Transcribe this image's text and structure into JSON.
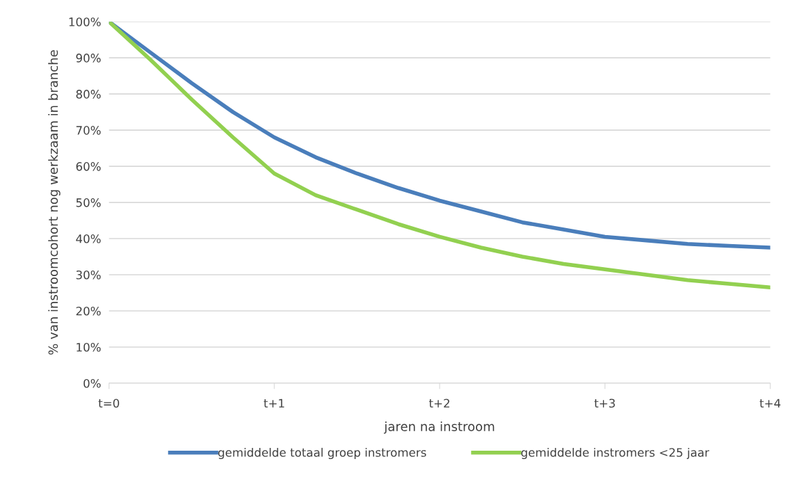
{
  "chart_data": {
    "type": "line",
    "xlabel": "jaren na instroom",
    "ylabel": "% van instroomcohort nog werkzaam in branche",
    "categories": [
      "t=0",
      null,
      null,
      null,
      "t+1",
      null,
      null,
      null,
      "t+2",
      null,
      null,
      null,
      "t+3",
      null,
      null,
      null,
      "t+4"
    ],
    "series": [
      {
        "name": "gemiddelde totaal groep instromers",
        "color": "#4a7ebb",
        "values": [
          100,
          91.5,
          83,
          75,
          68,
          62.5,
          58,
          54,
          50.5,
          47.5,
          44.5,
          42.5,
          40.5,
          39.5,
          38.5,
          38,
          37.5
        ]
      },
      {
        "name": "gemiddelde instromers <25 jaar",
        "color": "#92d050",
        "values": [
          100,
          89.5,
          78.5,
          68,
          58,
          52,
          48,
          44,
          40.5,
          37.5,
          35,
          33,
          31.5,
          30,
          28.5,
          27.5,
          26.5
        ]
      }
    ],
    "ylim": [
      0,
      100
    ],
    "yticks": [
      {
        "value": 0,
        "label": "0%"
      },
      {
        "value": 10,
        "label": "10%"
      },
      {
        "value": 20,
        "label": "20%"
      },
      {
        "value": 30,
        "label": "30%"
      },
      {
        "value": 40,
        "label": "40%"
      },
      {
        "value": 50,
        "label": "50%"
      },
      {
        "value": 60,
        "label": "60%"
      },
      {
        "value": 70,
        "label": "70%"
      },
      {
        "value": 80,
        "label": "80%"
      },
      {
        "value": 90,
        "label": "90%"
      },
      {
        "value": 100,
        "label": "100%"
      }
    ],
    "grid": "y",
    "legend": "bottom",
    "marker": "none",
    "line_style": "solid"
  }
}
